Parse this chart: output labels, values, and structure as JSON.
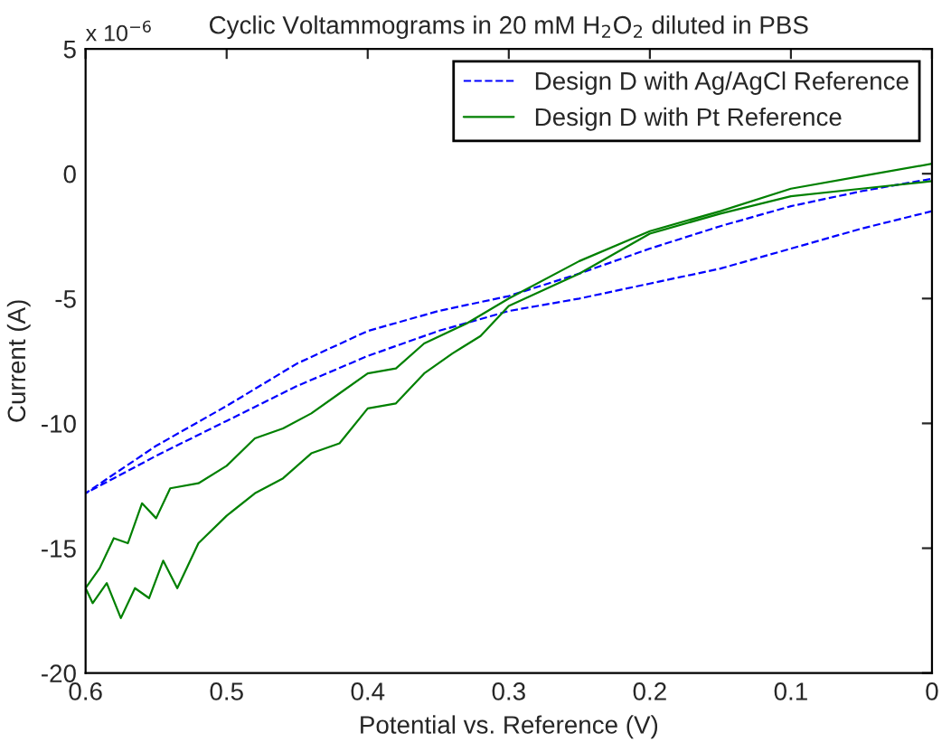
{
  "chart_data": {
    "type": "line",
    "title": "Cyclic Voltammograms in 20 mM H$_{2}$O$_{2}$ diluted in PBS",
    "xlabel": "Potential vs. Reference (V)",
    "ylabel": "Current (A)",
    "annotations": [
      "x 10$^{−6}$"
    ],
    "series": [
      {
        "name": "Design D with Ag/AgCl Reference",
        "color": "#0000ff",
        "line_style": "dashed",
        "x": [
          0,
          0.05,
          0.1,
          0.15,
          0.2,
          0.25,
          0.3,
          0.35,
          0.4,
          0.45,
          0.5,
          0.55,
          0.6,
          0.55,
          0.5,
          0.45,
          0.4,
          0.35,
          0.3,
          0.25,
          0.2,
          0.15,
          0.1,
          0.05,
          0
        ],
        "values": [
          -1.5,
          -2.2,
          -3.0,
          -3.8,
          -4.4,
          -5.0,
          -5.5,
          -6.3,
          -7.3,
          -8.5,
          -9.9,
          -11.3,
          -12.8,
          -10.9,
          -9.3,
          -7.6,
          -6.3,
          -5.5,
          -4.9,
          -4.0,
          -3.0,
          -2.1,
          -1.3,
          -0.7,
          -0.2
        ]
      },
      {
        "name": "Design D with Pt Reference",
        "color": "#008000",
        "line_style": "solid",
        "x": [
          0,
          0.05,
          0.1,
          0.15,
          0.2,
          0.25,
          0.3,
          0.33,
          0.36,
          0.38,
          0.4,
          0.42,
          0.44,
          0.46,
          0.48,
          0.5,
          0.52,
          0.54,
          0.55,
          0.56,
          0.57,
          0.58,
          0.59,
          0.6,
          0.595,
          0.585,
          0.575,
          0.565,
          0.555,
          0.545,
          0.535,
          0.52,
          0.5,
          0.48,
          0.46,
          0.44,
          0.42,
          0.4,
          0.38,
          0.36,
          0.34,
          0.32,
          0.3,
          0.25,
          0.2,
          0.15,
          0.1,
          0.05,
          0
        ],
        "values": [
          0.4,
          -0.1,
          -0.6,
          -1.5,
          -2.3,
          -3.5,
          -5.0,
          -6.0,
          -6.8,
          -7.8,
          -8.0,
          -8.8,
          -9.6,
          -10.2,
          -10.6,
          -11.7,
          -12.4,
          -12.6,
          -13.8,
          -13.2,
          -14.8,
          -14.6,
          -15.8,
          -16.6,
          -17.2,
          -16.4,
          -17.8,
          -16.6,
          -17.0,
          -15.5,
          -16.6,
          -14.8,
          -13.7,
          -12.8,
          -12.2,
          -11.2,
          -10.8,
          -9.4,
          -9.2,
          -8.0,
          -7.2,
          -6.5,
          -5.3,
          -4.0,
          -2.4,
          -1.6,
          -0.9,
          -0.6,
          -0.3
        ]
      }
    ],
    "xlim": [
      0.6,
      0
    ],
    "xticks": [
      0.6,
      0.5,
      0.4,
      0.3,
      0.2,
      0.1,
      0
    ],
    "ylim": [
      -20,
      5
    ],
    "yticks": [
      5,
      0,
      -5,
      -10,
      -15,
      -20
    ],
    "legend": "top right",
    "grid": false
  }
}
